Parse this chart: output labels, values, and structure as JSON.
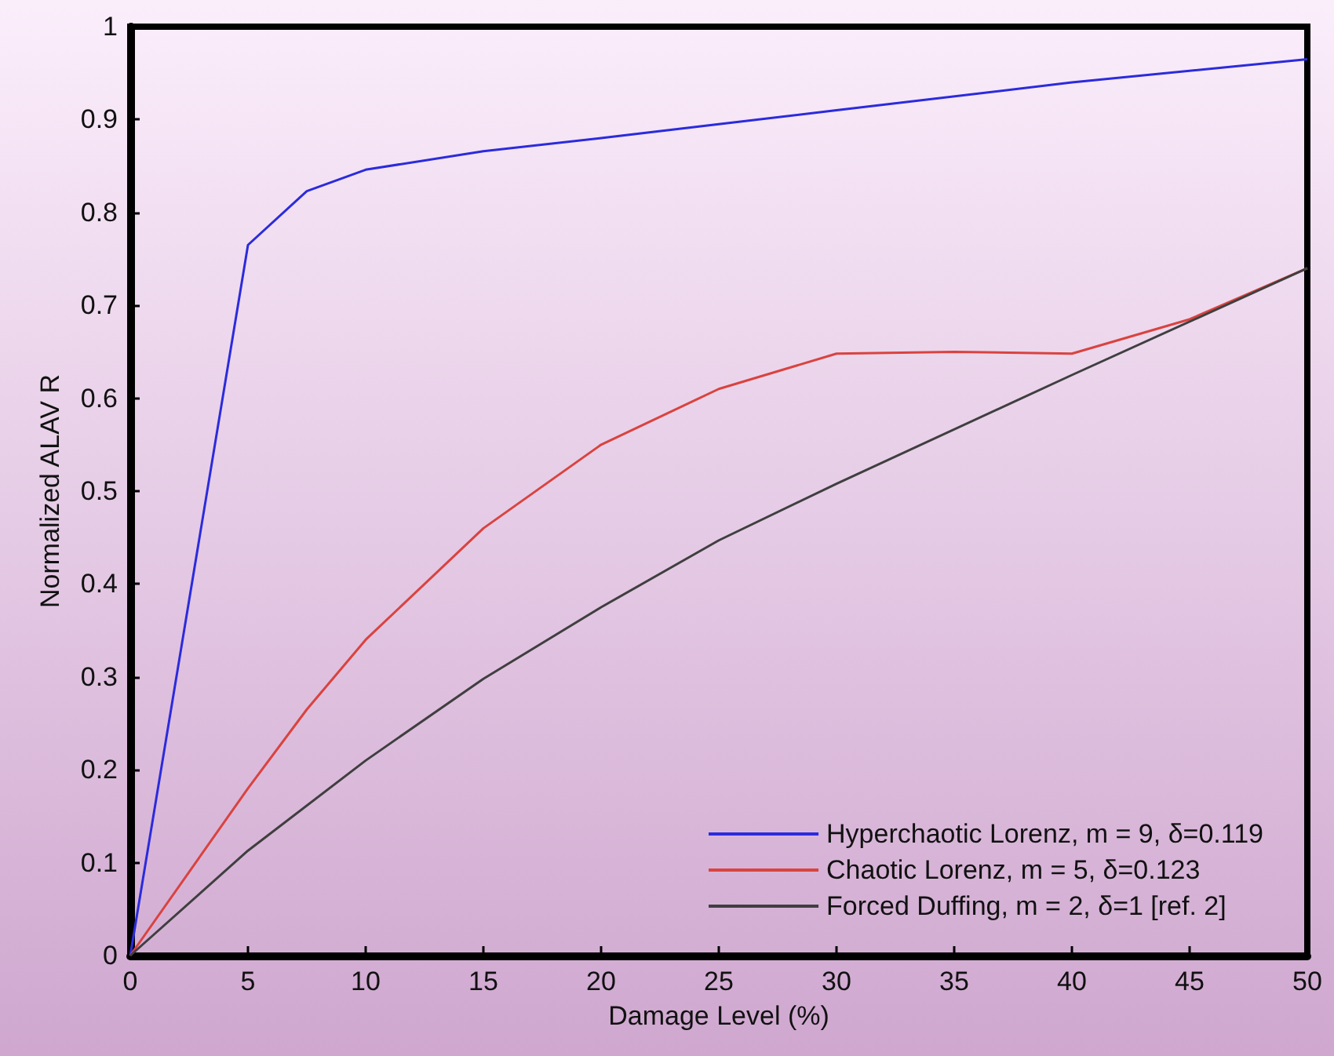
{
  "chart_data": {
    "type": "line",
    "xlabel": "Damage Level (%)",
    "ylabel": "Normalized ALAV R",
    "xlim": [
      0,
      50
    ],
    "xticks": [
      0,
      5,
      10,
      15,
      20,
      25,
      30,
      35,
      40,
      45,
      50
    ],
    "ylim": [
      0,
      1
    ],
    "yticks": [
      0,
      0.1,
      0.2,
      0.3,
      0.4,
      0.5,
      0.6,
      0.7,
      0.8,
      0.9,
      1
    ],
    "grid": false,
    "legend": "bottom right",
    "marker": "none",
    "line_style": "solid",
    "series": [
      {
        "name": "Hyperchaotic Lorenz, m = 9, δ=0.119",
        "color": "#2b2bdc",
        "x": [
          0,
          5,
          7.5,
          10,
          15,
          20,
          25,
          30,
          40,
          50
        ],
        "values": [
          0,
          0.765,
          0.823,
          0.846,
          0.866,
          0.88,
          0.895,
          0.91,
          0.94,
          0.965
        ]
      },
      {
        "name": "Chaotic Lorenz, m = 5, δ=0.123",
        "color": "#d9433f",
        "x": [
          0,
          5,
          7.5,
          10,
          15,
          20,
          25,
          30,
          35,
          40,
          45,
          50
        ],
        "values": [
          0,
          0.18,
          0.265,
          0.34,
          0.46,
          0.55,
          0.61,
          0.648,
          0.65,
          0.648,
          0.685,
          0.74
        ]
      },
      {
        "name": "Forced Duffing, m = 2, δ=1 [ref. 2]",
        "color": "#3f3f3f",
        "x": [
          0,
          5,
          10,
          15,
          20,
          25,
          30,
          40,
          50
        ],
        "values": [
          0,
          0.113,
          0.21,
          0.298,
          0.375,
          0.447,
          0.508,
          0.625,
          0.74
        ]
      }
    ]
  }
}
